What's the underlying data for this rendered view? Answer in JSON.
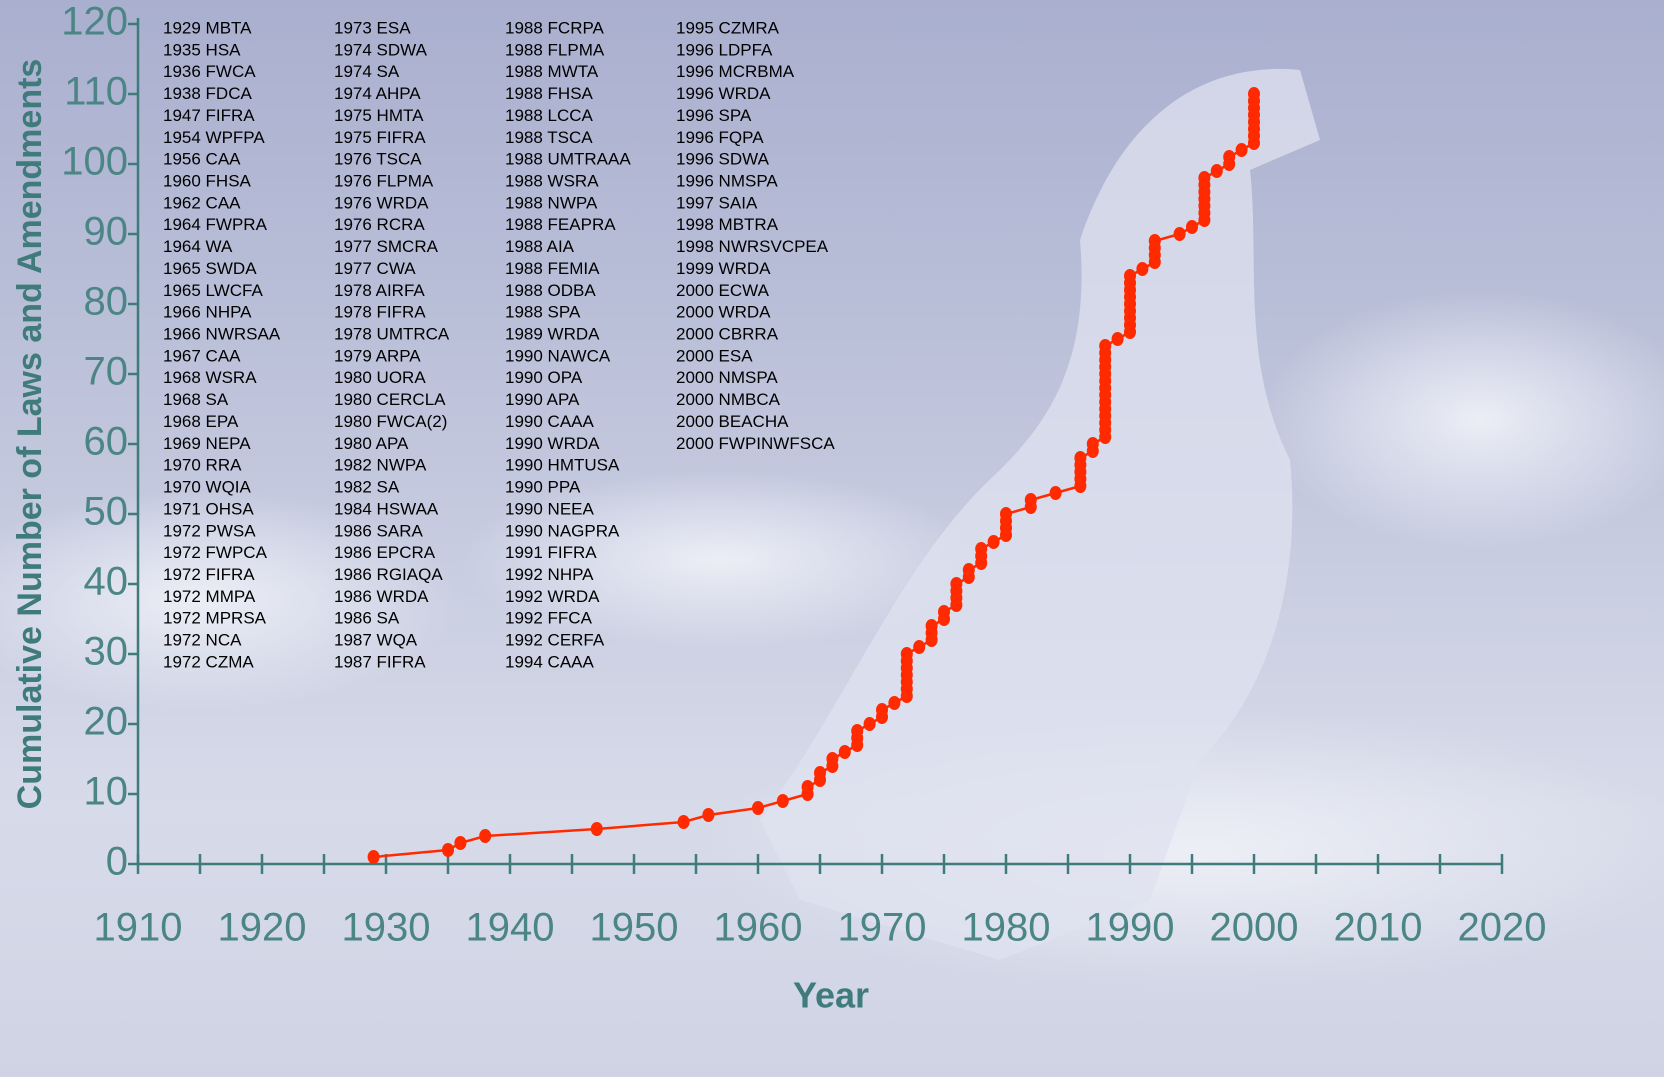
{
  "chart_data": {
    "type": "line",
    "x_label": "Year",
    "y_label": "Cumulative Number of Laws and Amendments",
    "xlim": [
      1910,
      2020
    ],
    "xticks": [
      1910,
      1920,
      1930,
      1940,
      1950,
      1960,
      1970,
      1980,
      1990,
      2000,
      2010,
      2020
    ],
    "x_minor_ticks": [
      1915,
      1925,
      1935,
      1945,
      1955,
      1965,
      1975,
      1985,
      1995,
      2005,
      2015
    ],
    "ylim": [
      0,
      120
    ],
    "yticks": [
      0,
      10,
      20,
      30,
      40,
      50,
      60,
      70,
      80,
      90,
      100,
      110,
      120
    ],
    "series": [
      {
        "color": "#ff2a00",
        "x": [
          1929,
          1935,
          1936,
          1938,
          1947,
          1954,
          1956,
          1960,
          1962,
          1964,
          1964,
          1965,
          1965,
          1966,
          1966,
          1967,
          1968,
          1968,
          1968,
          1969,
          1970,
          1970,
          1971,
          1972,
          1972,
          1972,
          1972,
          1972,
          1972,
          1972,
          1973,
          1974,
          1974,
          1974,
          1975,
          1975,
          1976,
          1976,
          1976,
          1976,
          1977,
          1977,
          1978,
          1978,
          1978,
          1979,
          1980,
          1980,
          1980,
          1980,
          1982,
          1982,
          1984,
          1986,
          1986,
          1986,
          1986,
          1986,
          1987,
          1987,
          1988,
          1988,
          1988,
          1988,
          1988,
          1988,
          1988,
          1988,
          1988,
          1988,
          1988,
          1988,
          1988,
          1988,
          1989,
          1990,
          1990,
          1990,
          1990,
          1990,
          1990,
          1990,
          1990,
          1990,
          1991,
          1992,
          1992,
          1992,
          1992,
          1994,
          1995,
          1996,
          1996,
          1996,
          1996,
          1996,
          1996,
          1996,
          1997,
          1998,
          1998,
          1999,
          2000,
          2000,
          2000,
          2000,
          2000,
          2000,
          2000,
          2000
        ],
        "values": [
          1,
          2,
          3,
          4,
          5,
          6,
          7,
          8,
          9,
          10,
          11,
          12,
          13,
          14,
          15,
          16,
          17,
          18,
          19,
          20,
          21,
          22,
          23,
          24,
          25,
          26,
          27,
          28,
          29,
          30,
          31,
          32,
          33,
          34,
          35,
          36,
          37,
          38,
          39,
          40,
          41,
          42,
          43,
          44,
          45,
          46,
          47,
          48,
          49,
          50,
          51,
          52,
          53,
          54,
          55,
          56,
          57,
          58,
          59,
          60,
          61,
          62,
          63,
          64,
          65,
          66,
          67,
          68,
          69,
          70,
          71,
          72,
          73,
          74,
          75,
          76,
          77,
          78,
          79,
          80,
          81,
          82,
          83,
          84,
          85,
          86,
          87,
          88,
          89,
          90,
          91,
          92,
          93,
          94,
          95,
          96,
          97,
          98,
          99,
          100,
          101,
          102,
          103,
          104,
          105,
          106,
          107,
          108,
          109,
          110
        ]
      }
    ],
    "laws": [
      "1929 MBTA",
      "1935 HSA",
      "1936 FWCA",
      "1938 FDCA",
      "1947 FIFRA",
      "1954 WPFPA",
      "1956 CAA",
      "1960 FHSA",
      "1962 CAA",
      "1964 FWPRA",
      "1964 WA",
      "1965 SWDA",
      "1965 LWCFA",
      "1966 NHPA",
      "1966 NWRSAA",
      "1967 CAA",
      "1968 WSRA",
      "1968 SA",
      "1968 EPA",
      "1969 NEPA",
      "1970 RRA",
      "1970 WQIA",
      "1971 OHSA",
      "1972 PWSA",
      "1972 FWPCA",
      "1972 FIFRA",
      "1972 MMPA",
      "1972 MPRSA",
      "1972 NCA",
      "1972 CZMA",
      "1973 ESA",
      "1974 SDWA",
      "1974 SA",
      "1974 AHPA",
      "1975 HMTA",
      "1975 FIFRA",
      "1976 TSCA",
      "1976 FLPMA",
      "1976 WRDA",
      "1976 RCRA",
      "1977 SMCRA",
      "1977 CWA",
      "1978 AIRFA",
      "1978 FIFRA",
      "1978 UMTRCA",
      "1979 ARPA",
      "1980 UORA",
      "1980 CERCLA",
      "1980 FWCA(2)",
      "1980 APA",
      "1982 NWPA",
      "1982 SA",
      "1984 HSWAA",
      "1986 SARA",
      "1986 EPCRA",
      "1986 RGIAQA",
      "1986 WRDA",
      "1986 SA",
      "1987 WQA",
      "1987 FIFRA",
      "1988 FCRPA",
      "1988 FLPMA",
      "1988 MWTA",
      "1988 FHSA",
      "1988 LCCA",
      "1988 TSCA",
      "1988 UMTRAAA",
      "1988 WSRA",
      "1988 NWPA",
      "1988 FEAPRA",
      "1988 AIA",
      "1988 FEMIA",
      "1988 ODBA",
      "1988 SPA",
      "1989 WRDA",
      "1990 NAWCA",
      "1990 OPA",
      "1990 APA",
      "1990 CAAA",
      "1990 WRDA",
      "1990 HMTUSA",
      "1990 PPA",
      "1990 NEEA",
      "1990 NAGPRA",
      "1991 FIFRA",
      "1992 NHPA",
      "1992 WRDA",
      "1992 FFCA",
      "1992 CERFA",
      "1994 CAAA",
      "1995 CZMRA",
      "1996 LDPFA",
      "1996 MCRBMA",
      "1996 WRDA",
      "1996 SPA",
      "1996 FQPA",
      "1996 SDWA",
      "1996 NMSPA",
      "1997 SAIA",
      "1998 MBTRA",
      "1998 NWRSVCPEA",
      "1999 WRDA",
      "2000 ECWA",
      "2000 WRDA",
      "2000 CBRRA",
      "2000 ESA",
      "2000 NMSPA",
      "2000 NMBCA",
      "2000 BEACHA",
      "2000 FWPINWFSCA"
    ]
  }
}
